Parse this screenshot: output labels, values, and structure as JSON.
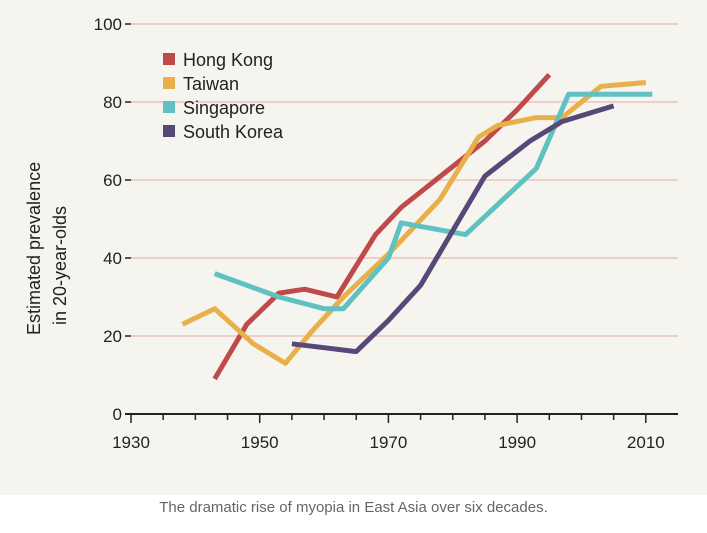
{
  "chart_data": {
    "type": "line",
    "title": "",
    "xlabel": "",
    "ylabel_lines": [
      "Estimated prevalence",
      "in 20-year-olds"
    ],
    "xlim": [
      1930,
      2015
    ],
    "ylim": [
      0,
      100
    ],
    "x_ticks": [
      1930,
      1950,
      1970,
      1990,
      2010
    ],
    "y_ticks": [
      0,
      20,
      40,
      60,
      80,
      100
    ],
    "grid": true,
    "legend_position": "top-left",
    "series": [
      {
        "name": "Hong Kong",
        "color": "#c0494a",
        "points": [
          [
            1943,
            9
          ],
          [
            1948,
            23
          ],
          [
            1953,
            31
          ],
          [
            1957,
            32
          ],
          [
            1962,
            30
          ],
          [
            1968,
            46
          ],
          [
            1972,
            53
          ],
          [
            1985,
            70
          ],
          [
            1990,
            78
          ],
          [
            1995,
            87
          ]
        ]
      },
      {
        "name": "Taiwan",
        "color": "#e8b04b",
        "points": [
          [
            1938,
            23
          ],
          [
            1943,
            27
          ],
          [
            1949,
            18
          ],
          [
            1954,
            13
          ],
          [
            1958,
            21
          ],
          [
            1963,
            30
          ],
          [
            1970,
            41
          ],
          [
            1978,
            55
          ],
          [
            1984,
            71
          ],
          [
            1987,
            74
          ],
          [
            1993,
            76
          ],
          [
            1997,
            76
          ],
          [
            2003,
            84
          ],
          [
            2010,
            85
          ]
        ]
      },
      {
        "name": "Singapore",
        "color": "#5fc1c0",
        "points": [
          [
            1943,
            36
          ],
          [
            1953,
            30
          ],
          [
            1960,
            27
          ],
          [
            1963,
            27
          ],
          [
            1970,
            40
          ],
          [
            1972,
            49
          ],
          [
            1982,
            46
          ],
          [
            1993,
            63
          ],
          [
            1998,
            82
          ],
          [
            2005,
            82
          ],
          [
            2011,
            82
          ]
        ]
      },
      {
        "name": "South Korea",
        "color": "#574878",
        "points": [
          [
            1955,
            18
          ],
          [
            1960,
            17
          ],
          [
            1965,
            16
          ],
          [
            1970,
            24
          ],
          [
            1975,
            33
          ],
          [
            1985,
            61
          ],
          [
            1992,
            70
          ],
          [
            1997,
            75
          ],
          [
            2005,
            79
          ]
        ]
      }
    ]
  },
  "caption": "The dramatic rise of myopia in East Asia over six decades."
}
